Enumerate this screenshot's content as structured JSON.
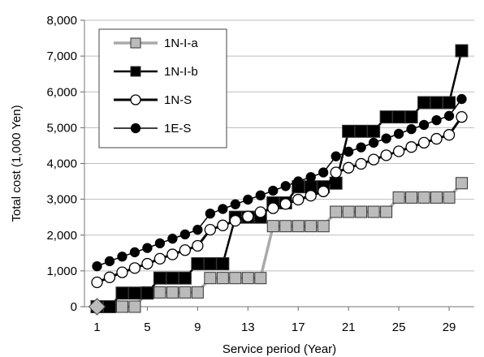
{
  "chart_data": {
    "type": "line",
    "title": "",
    "xlabel": "Service period (Year)",
    "ylabel": "Total cost (1,000 Yen)",
    "xlim": [
      0,
      31
    ],
    "ylim": [
      0,
      8000
    ],
    "xticks": [
      1,
      5,
      9,
      13,
      17,
      21,
      25,
      29
    ],
    "xtick_labels": [
      "1",
      "5",
      "9",
      "13",
      "17",
      "21",
      "25",
      "29"
    ],
    "yticks": [
      0,
      1000,
      2000,
      3000,
      4000,
      5000,
      6000,
      7000,
      8000
    ],
    "ytick_labels": [
      "0",
      "1,000",
      "2,000",
      "3,000",
      "4,000",
      "5,000",
      "6,000",
      "7,000",
      "8,000"
    ],
    "grid": "horizontal",
    "legend_position": "top-left",
    "series": [
      {
        "name": "1N-I-a",
        "color": "#aaaaaa",
        "marker": "square",
        "marker_fill": "#bbbbbb",
        "x": [
          1,
          2,
          3,
          4,
          5,
          6,
          7,
          8,
          9,
          10,
          11,
          12,
          13,
          14,
          15,
          16,
          17,
          18,
          19,
          20,
          21,
          22,
          23,
          24,
          25,
          26,
          27,
          28,
          29,
          30
        ],
        "values": [
          0,
          0,
          0,
          0,
          400,
          400,
          400,
          400,
          400,
          800,
          800,
          800,
          800,
          800,
          2250,
          2250,
          2250,
          2250,
          2250,
          2650,
          2650,
          2650,
          2650,
          2650,
          3050,
          3050,
          3050,
          3050,
          3050,
          3450
        ]
      },
      {
        "name": "1N-I-b",
        "color": "#000000",
        "marker": "square",
        "marker_fill": "#000000",
        "x": [
          1,
          2,
          3,
          4,
          5,
          6,
          7,
          8,
          9,
          10,
          11,
          12,
          13,
          14,
          15,
          16,
          17,
          18,
          19,
          20,
          21,
          22,
          23,
          24,
          25,
          26,
          27,
          28,
          29,
          30
        ],
        "values": [
          0,
          0,
          380,
          380,
          380,
          800,
          800,
          800,
          1200,
          1200,
          1200,
          2500,
          2500,
          2500,
          2900,
          2900,
          3350,
          3350,
          3350,
          3450,
          4900,
          4900,
          4900,
          5300,
          5300,
          5300,
          5700,
          5700,
          5700,
          7150
        ]
      },
      {
        "name": "1N-S",
        "color": "#000000",
        "marker": "circle-open",
        "marker_fill": "#ffffff",
        "x": [
          1,
          2,
          3,
          4,
          5,
          6,
          7,
          8,
          9,
          10,
          11,
          12,
          13,
          14,
          15,
          16,
          17,
          18,
          19,
          20,
          21,
          22,
          23,
          24,
          25,
          26,
          27,
          28,
          29,
          30
        ],
        "values": [
          680,
          820,
          960,
          1080,
          1200,
          1340,
          1460,
          1580,
          1700,
          2150,
          2270,
          2400,
          2520,
          2640,
          2750,
          2870,
          2990,
          3100,
          3220,
          3750,
          3880,
          3990,
          4110,
          4230,
          4340,
          4460,
          4580,
          4690,
          4800,
          5300
        ]
      },
      {
        "name": "1E-S",
        "color": "#000000",
        "marker": "circle",
        "marker_fill": "#000000",
        "x": [
          1,
          2,
          3,
          4,
          5,
          6,
          7,
          8,
          9,
          10,
          11,
          12,
          13,
          14,
          15,
          16,
          17,
          18,
          19,
          20,
          21,
          22,
          23,
          24,
          25,
          26,
          27,
          28,
          29,
          30
        ],
        "values": [
          1130,
          1270,
          1400,
          1520,
          1640,
          1770,
          1900,
          2020,
          2150,
          2600,
          2730,
          2860,
          2990,
          3110,
          3240,
          3370,
          3500,
          3620,
          3750,
          4200,
          4330,
          4450,
          4580,
          4700,
          4830,
          4960,
          5080,
          5210,
          5330,
          5800
        ]
      }
    ],
    "start_marker": {
      "shape": "diamond",
      "x": 1,
      "value": 0,
      "fill": "#bbbbbb"
    }
  }
}
